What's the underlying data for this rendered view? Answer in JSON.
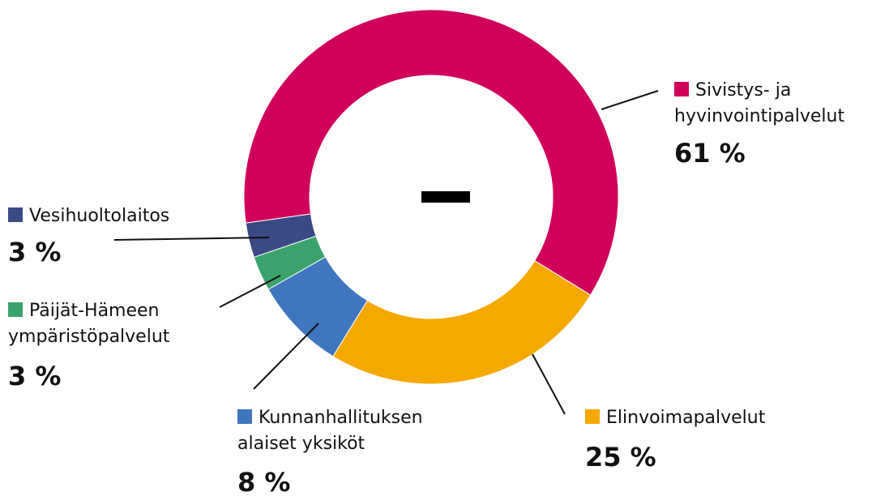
{
  "chart_data": {
    "type": "donut",
    "categories": [
      "Sivistys- ja hyvinvointipalvelut",
      "Elinvoimapalvelut",
      "Kunnanhallituksen alaiset yksiköt",
      "Päijät-Hämeen ympäristöpalvelut",
      "Vesihuoltolaitos"
    ],
    "values": [
      61,
      25,
      8,
      3,
      3
    ],
    "value_labels": [
      "61 %",
      "25 %",
      "8 %",
      "3 %",
      "3 %"
    ],
    "colors": [
      "#d0005a",
      "#f5a800",
      "#3f76bf",
      "#3aa36b",
      "#3a4a85"
    ]
  }
}
